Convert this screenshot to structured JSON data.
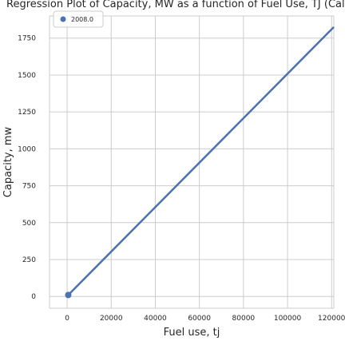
{
  "chart_data": {
    "type": "scatter",
    "title": "Regression Plot of Capacity, MW as a function of Fuel Use, TJ (Califo",
    "xlabel": "Fuel use, tj",
    "ylabel": "Capacity, mw",
    "xlim": [
      -8000,
      121000
    ],
    "ylim": [
      -80,
      1900
    ],
    "x_ticks": [
      0,
      20000,
      40000,
      60000,
      80000,
      100000,
      120000
    ],
    "y_ticks": [
      0,
      250,
      500,
      750,
      1000,
      1250,
      1500,
      1750
    ],
    "grid": true,
    "legend_position": "top-left",
    "series": [
      {
        "name": "2008.0",
        "color": "#4c72b0",
        "points": [
          {
            "x": 500,
            "y": 10
          }
        ],
        "regression": {
          "x": [
            500,
            121000
          ],
          "y": [
            10,
            1825
          ]
        }
      }
    ]
  }
}
